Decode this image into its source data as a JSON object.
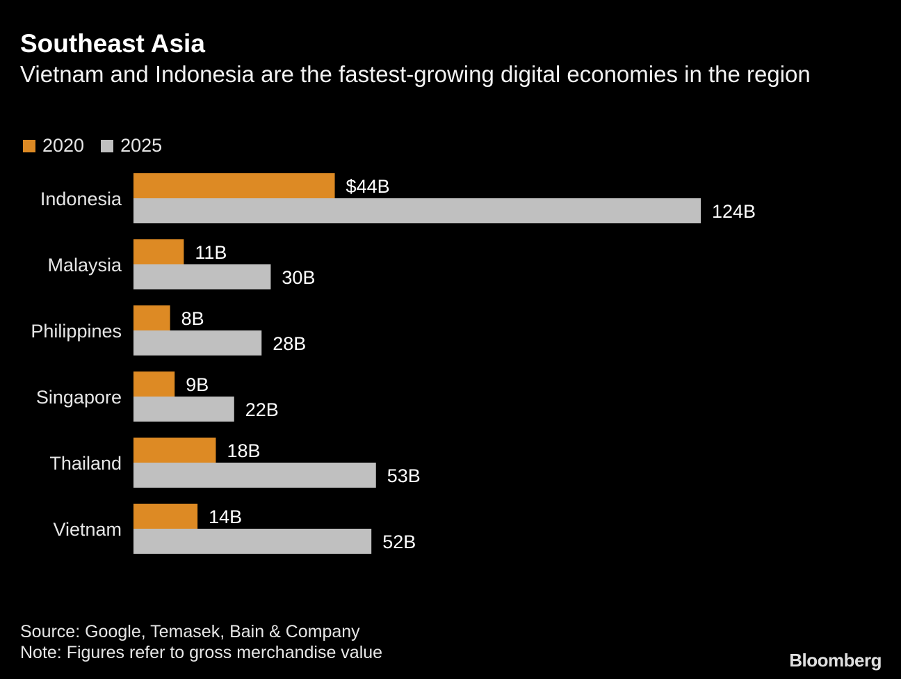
{
  "chart_data": {
    "type": "bar",
    "orientation": "horizontal",
    "title": "Southeast Asia",
    "subtitle": "Vietnam and Indonesia are the fastest-growing digital economies in the region",
    "categories": [
      "Indonesia",
      "Malaysia",
      "Philippines",
      "Singapore",
      "Thailand",
      "Vietnam"
    ],
    "series": [
      {
        "name": "2020",
        "color": "#dd8a24",
        "values": [
          44,
          11,
          8,
          9,
          18,
          14
        ],
        "labels": [
          "$44B",
          "11B",
          "8B",
          "9B",
          "18B",
          "14B"
        ]
      },
      {
        "name": "2025",
        "color": "#c0c0c0",
        "values": [
          124,
          30,
          28,
          22,
          53,
          52
        ],
        "labels": [
          "124B",
          "30B",
          "28B",
          "22B",
          "53B",
          "52B"
        ]
      }
    ],
    "unit": "USD billions",
    "xlim": [
      0,
      124
    ],
    "grid": false,
    "legend_position": "top-left"
  },
  "footer": {
    "source": "Source: Google, Temasek, Bain & Company",
    "note": "Note: Figures refer to gross merchandise value",
    "logo": "Bloomberg"
  }
}
